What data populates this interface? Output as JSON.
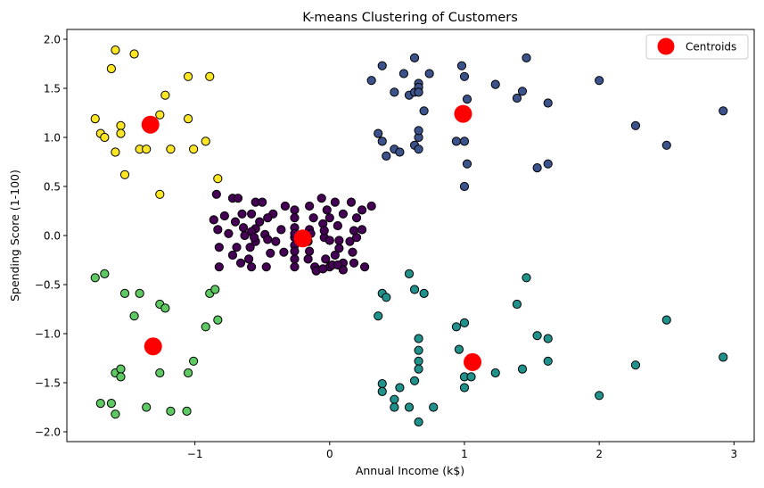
{
  "chart_data": {
    "type": "scatter",
    "title": "K-means Clustering of Customers",
    "xlabel": "Annual Income (k$)",
    "ylabel": "Spending Score (1-100)",
    "xlim": [
      -1.95,
      3.15
    ],
    "ylim": [
      -2.1,
      2.1
    ],
    "xticks": [
      -1,
      0,
      1,
      2,
      3
    ],
    "yticks": [
      -2.0,
      -1.5,
      -1.0,
      -0.5,
      0.0,
      0.5,
      1.0,
      1.5,
      2.0
    ],
    "grid": false,
    "legend": {
      "position": "top-right",
      "entries": [
        "Centroids"
      ]
    },
    "colors": {
      "cluster_0": "#440154",
      "cluster_1": "#3b528b",
      "cluster_2": "#21918c",
      "cluster_3": "#5ec962",
      "cluster_4": "#fde725",
      "centroid": "#ff0000",
      "edge": "#000000"
    },
    "series": [
      {
        "cluster": 0,
        "points": [
          [
            -0.84,
            0.42
          ],
          [
            -0.72,
            0.38
          ],
          [
            -0.68,
            0.38
          ],
          [
            -0.55,
            0.34
          ],
          [
            -0.5,
            0.34
          ],
          [
            -0.33,
            0.3
          ],
          [
            -0.06,
            0.38
          ],
          [
            0.16,
            0.34
          ],
          [
            0.04,
            0.34
          ],
          [
            -0.15,
            0.3
          ],
          [
            -0.02,
            0.26
          ],
          [
            0.24,
            0.26
          ],
          [
            0.31,
            0.3
          ],
          [
            -0.78,
            0.2
          ],
          [
            -0.65,
            0.22
          ],
          [
            -0.58,
            0.22
          ],
          [
            -0.42,
            0.22
          ],
          [
            -0.46,
            0.18
          ],
          [
            -0.7,
            0.14
          ],
          [
            -0.86,
            0.16
          ],
          [
            -0.52,
            0.14
          ],
          [
            -0.26,
            0.26
          ],
          [
            -0.26,
            0.18
          ],
          [
            -0.12,
            0.18
          ],
          [
            0.0,
            0.18
          ],
          [
            0.1,
            0.22
          ],
          [
            0.2,
            0.18
          ],
          [
            -0.83,
            0.06
          ],
          [
            -0.64,
            0.08
          ],
          [
            -0.55,
            0.07
          ],
          [
            -0.36,
            0.06
          ],
          [
            -0.26,
            0.08
          ],
          [
            -0.15,
            0.06
          ],
          [
            -0.05,
            0.12
          ],
          [
            0.06,
            0.1
          ],
          [
            0.18,
            0.05
          ],
          [
            0.24,
            0.06
          ],
          [
            -0.75,
            0.02
          ],
          [
            -0.58,
            0.04
          ],
          [
            -0.48,
            0.01
          ],
          [
            -0.82,
            -0.12
          ],
          [
            -0.69,
            -0.12
          ],
          [
            -0.59,
            -0.12
          ],
          [
            -0.55,
            -0.06
          ],
          [
            -0.4,
            -0.06
          ],
          [
            -0.26,
            -0.02
          ],
          [
            -0.16,
            -0.06
          ],
          [
            -0.04,
            -0.02
          ],
          [
            0.0,
            -0.05
          ],
          [
            0.07,
            -0.05
          ],
          [
            0.15,
            -0.06
          ],
          [
            0.2,
            -0.02
          ],
          [
            -0.63,
            0.0
          ],
          [
            -0.56,
            -0.02
          ],
          [
            -0.46,
            -0.04
          ],
          [
            -0.26,
            0.02
          ],
          [
            -0.04,
            0.05
          ],
          [
            -0.82,
            -0.32
          ],
          [
            -0.66,
            -0.28
          ],
          [
            -0.58,
            -0.32
          ],
          [
            -0.47,
            -0.32
          ],
          [
            -0.44,
            -0.18
          ],
          [
            -0.34,
            -0.17
          ],
          [
            -0.26,
            -0.24
          ],
          [
            -0.16,
            -0.24
          ],
          [
            -0.03,
            -0.24
          ],
          [
            0.04,
            -0.2
          ],
          [
            0.1,
            -0.28
          ],
          [
            0.18,
            -0.28
          ],
          [
            0.26,
            -0.32
          ],
          [
            -0.72,
            -0.2
          ],
          [
            -0.6,
            -0.24
          ],
          [
            -0.26,
            -0.32
          ],
          [
            -0.11,
            -0.32
          ],
          [
            0.0,
            -0.32
          ],
          [
            0.1,
            -0.35
          ],
          [
            -0.26,
            -0.1
          ],
          [
            -0.15,
            -0.16
          ],
          [
            0.07,
            -0.13
          ],
          [
            0.17,
            -0.17
          ],
          [
            -0.1,
            -0.36
          ],
          [
            -0.05,
            -0.34
          ],
          [
            0.02,
            -0.3
          ],
          [
            0.06,
            -0.3
          ],
          [
            -0.26,
            -0.16
          ],
          [
            -0.14,
            0.02
          ]
        ]
      },
      {
        "cluster": 1,
        "points": [
          [
            0.31,
            1.58
          ],
          [
            0.39,
            1.73
          ],
          [
            0.48,
            1.46
          ],
          [
            0.55,
            1.65
          ],
          [
            0.59,
            1.43
          ],
          [
            0.63,
            1.81
          ],
          [
            0.63,
            1.46
          ],
          [
            0.66,
            1.55
          ],
          [
            0.66,
            1.51
          ],
          [
            0.66,
            1.46
          ],
          [
            0.74,
            1.65
          ],
          [
            0.98,
            1.73
          ],
          [
            1.0,
            1.62
          ],
          [
            1.02,
            1.39
          ],
          [
            0.7,
            1.27
          ],
          [
            1.23,
            1.54
          ],
          [
            1.39,
            1.4
          ],
          [
            1.43,
            1.47
          ],
          [
            1.46,
            1.81
          ],
          [
            1.62,
            1.35
          ],
          [
            2.0,
            1.58
          ],
          [
            0.36,
            1.04
          ],
          [
            0.39,
            0.96
          ],
          [
            0.42,
            0.81
          ],
          [
            0.48,
            0.88
          ],
          [
            0.52,
            0.85
          ],
          [
            0.63,
            0.92
          ],
          [
            0.66,
            0.88
          ],
          [
            0.66,
            1.0
          ],
          [
            0.66,
            1.07
          ],
          [
            0.94,
            0.96
          ],
          [
            1.0,
            0.96
          ],
          [
            1.02,
            0.73
          ],
          [
            1.0,
            0.5
          ],
          [
            1.54,
            0.69
          ],
          [
            1.62,
            0.73
          ],
          [
            2.27,
            1.12
          ],
          [
            2.5,
            0.92
          ],
          [
            2.92,
            1.27
          ]
        ]
      },
      {
        "cluster": 2,
        "points": [
          [
            0.36,
            -0.82
          ],
          [
            0.39,
            -0.59
          ],
          [
            0.42,
            -0.63
          ],
          [
            0.59,
            -0.39
          ],
          [
            0.63,
            -0.55
          ],
          [
            0.7,
            -0.59
          ],
          [
            0.94,
            -0.93
          ],
          [
            1.0,
            -0.89
          ],
          [
            0.96,
            -1.16
          ],
          [
            1.0,
            -1.44
          ],
          [
            1.0,
            -1.55
          ],
          [
            1.05,
            -1.44
          ],
          [
            1.39,
            -0.7
          ],
          [
            1.46,
            -0.43
          ],
          [
            1.23,
            -1.4
          ],
          [
            1.43,
            -1.36
          ],
          [
            1.54,
            -1.02
          ],
          [
            1.62,
            -1.05
          ],
          [
            1.62,
            -1.28
          ],
          [
            0.39,
            -1.51
          ],
          [
            0.39,
            -1.59
          ],
          [
            0.48,
            -1.67
          ],
          [
            0.48,
            -1.75
          ],
          [
            0.52,
            -1.55
          ],
          [
            0.59,
            -1.75
          ],
          [
            0.63,
            -1.48
          ],
          [
            0.66,
            -1.05
          ],
          [
            0.66,
            -1.17
          ],
          [
            0.66,
            -1.28
          ],
          [
            0.66,
            -1.36
          ],
          [
            0.66,
            -1.9
          ],
          [
            0.77,
            -1.75
          ],
          [
            2.0,
            -1.63
          ],
          [
            2.27,
            -1.32
          ],
          [
            2.5,
            -0.86
          ],
          [
            2.92,
            -1.24
          ]
        ]
      },
      {
        "cluster": 3,
        "points": [
          [
            -1.74,
            -0.43
          ],
          [
            -1.67,
            -0.39
          ],
          [
            -1.52,
            -0.59
          ],
          [
            -1.41,
            -0.59
          ],
          [
            -1.45,
            -0.82
          ],
          [
            -1.26,
            -0.7
          ],
          [
            -1.22,
            -0.74
          ],
          [
            -0.89,
            -0.59
          ],
          [
            -0.85,
            -0.55
          ],
          [
            -0.92,
            -0.93
          ],
          [
            -0.83,
            -0.86
          ],
          [
            -1.59,
            -1.4
          ],
          [
            -1.55,
            -1.36
          ],
          [
            -1.55,
            -1.44
          ],
          [
            -1.26,
            -1.4
          ],
          [
            -1.05,
            -1.4
          ],
          [
            -1.01,
            -1.28
          ],
          [
            -1.7,
            -1.71
          ],
          [
            -1.62,
            -1.71
          ],
          [
            -1.59,
            -1.82
          ],
          [
            -1.36,
            -1.75
          ],
          [
            -1.18,
            -1.79
          ],
          [
            -1.06,
            -1.79
          ]
        ]
      },
      {
        "cluster": 4,
        "points": [
          [
            -1.74,
            1.19
          ],
          [
            -1.7,
            1.04
          ],
          [
            -1.67,
            1.0
          ],
          [
            -1.62,
            1.7
          ],
          [
            -1.59,
            1.89
          ],
          [
            -1.59,
            0.85
          ],
          [
            -1.55,
            1.12
          ],
          [
            -1.55,
            1.04
          ],
          [
            -1.52,
            0.62
          ],
          [
            -1.45,
            1.85
          ],
          [
            -1.41,
            0.88
          ],
          [
            -1.36,
            0.88
          ],
          [
            -1.26,
            1.23
          ],
          [
            -1.22,
            1.43
          ],
          [
            -1.26,
            0.42
          ],
          [
            -1.18,
            0.88
          ],
          [
            -1.05,
            1.62
          ],
          [
            -1.05,
            1.19
          ],
          [
            -1.01,
            0.88
          ],
          [
            -0.92,
            0.96
          ],
          [
            -0.89,
            1.62
          ],
          [
            -0.83,
            0.58
          ]
        ]
      }
    ],
    "centroids": [
      {
        "x": -1.33,
        "y": 1.13
      },
      {
        "x": 0.99,
        "y": 1.24
      },
      {
        "x": -0.2,
        "y": -0.03
      },
      {
        "x": -1.31,
        "y": -1.13
      },
      {
        "x": 1.06,
        "y": -1.29
      }
    ]
  }
}
